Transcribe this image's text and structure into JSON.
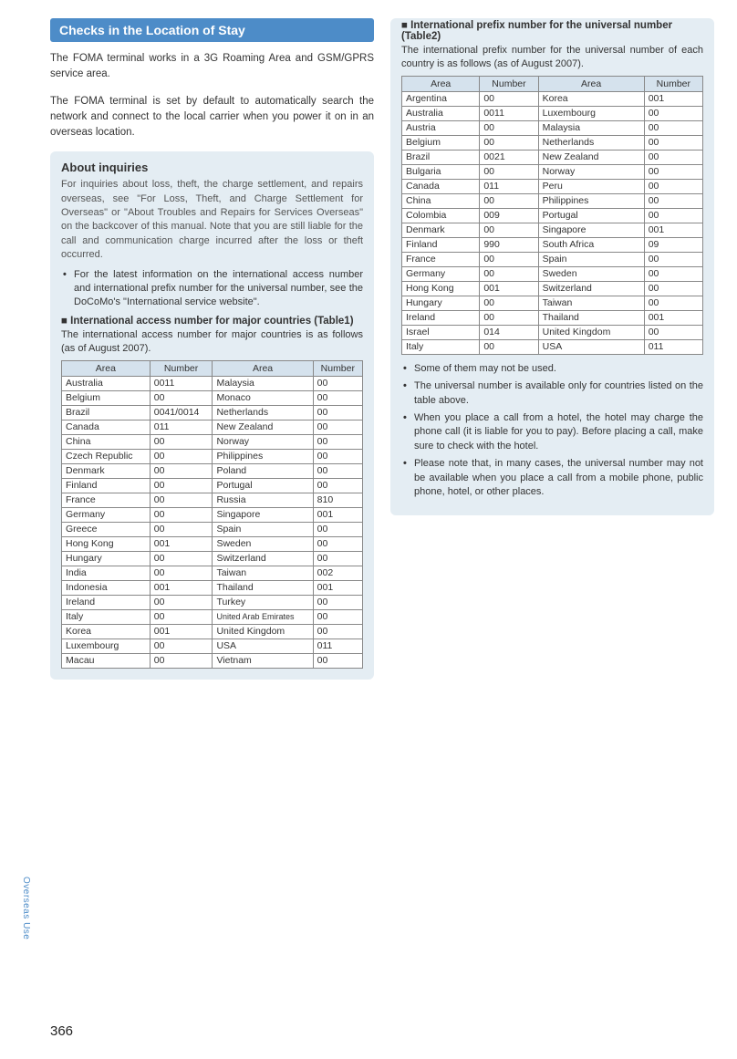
{
  "page_number": "366",
  "side_label": "Overseas Use",
  "left": {
    "heading": "Checks in the Location of Stay",
    "intro1": "The FOMA terminal works in a 3G Roaming Area and GSM/GPRS service area.",
    "intro2": "The FOMA terminal is set by default to automatically search the network and connect to the local carrier when you power it on in an overseas location.",
    "box": {
      "title": "About inquiries",
      "body": "For inquiries about loss, theft, the charge settlement, and repairs overseas, see \"For Loss, Theft, and Charge Settlement for Overseas\" or \"About Troubles and Repairs for Services Overseas\" on the backcover of this manual. Note that you are still liable for the call and communication charge incurred after the loss or theft occurred.",
      "bullet1": "For the latest information on the international access number and international prefix number for the universal number, see the DoCoMo's \"International service website\".",
      "sub_heading": "International access number for major countries (Table1)",
      "sub_text": "The international access number for major countries is as follows (as of August 2007).",
      "table": {
        "headers": [
          "Area",
          "Number",
          "Area",
          "Number"
        ],
        "rows": [
          [
            "Australia",
            "0011",
            "Malaysia",
            "00"
          ],
          [
            "Belgium",
            "00",
            "Monaco",
            "00"
          ],
          [
            "Brazil",
            "0041/0014",
            "Netherlands",
            "00"
          ],
          [
            "Canada",
            "011",
            "New Zealand",
            "00"
          ],
          [
            "China",
            "00",
            "Norway",
            "00"
          ],
          [
            "Czech Republic",
            "00",
            "Philippines",
            "00"
          ],
          [
            "Denmark",
            "00",
            "Poland",
            "00"
          ],
          [
            "Finland",
            "00",
            "Portugal",
            "00"
          ],
          [
            "France",
            "00",
            "Russia",
            "810"
          ],
          [
            "Germany",
            "00",
            "Singapore",
            "001"
          ],
          [
            "Greece",
            "00",
            "Spain",
            "00"
          ],
          [
            "Hong Kong",
            "001",
            "Sweden",
            "00"
          ],
          [
            "Hungary",
            "00",
            "Switzerland",
            "00"
          ],
          [
            "India",
            "00",
            "Taiwan",
            "002"
          ],
          [
            "Indonesia",
            "001",
            "Thailand",
            "001"
          ],
          [
            "Ireland",
            "00",
            "Turkey",
            "00"
          ],
          [
            "Italy",
            "00",
            "United Arab Emirates",
            "00"
          ],
          [
            "Korea",
            "001",
            "United Kingdom",
            "00"
          ],
          [
            "Luxembourg",
            "00",
            "USA",
            "011"
          ],
          [
            "Macau",
            "00",
            "Vietnam",
            "00"
          ]
        ]
      }
    }
  },
  "right": {
    "box": {
      "sub_heading": "International prefix number for the universal number (Table2)",
      "sub_text": "The international prefix number for the universal number of each country is as follows (as of August 2007).",
      "table": {
        "headers": [
          "Area",
          "Number",
          "Area",
          "Number"
        ],
        "rows": [
          [
            "Argentina",
            "00",
            "Korea",
            "001"
          ],
          [
            "Australia",
            "0011",
            "Luxembourg",
            "00"
          ],
          [
            "Austria",
            "00",
            "Malaysia",
            "00"
          ],
          [
            "Belgium",
            "00",
            "Netherlands",
            "00"
          ],
          [
            "Brazil",
            "0021",
            "New Zealand",
            "00"
          ],
          [
            "Bulgaria",
            "00",
            "Norway",
            "00"
          ],
          [
            "Canada",
            "011",
            "Peru",
            "00"
          ],
          [
            "China",
            "00",
            "Philippines",
            "00"
          ],
          [
            "Colombia",
            "009",
            "Portugal",
            "00"
          ],
          [
            "Denmark",
            "00",
            "Singapore",
            "001"
          ],
          [
            "Finland",
            "990",
            "South Africa",
            "09"
          ],
          [
            "France",
            "00",
            "Spain",
            "00"
          ],
          [
            "Germany",
            "00",
            "Sweden",
            "00"
          ],
          [
            "Hong Kong",
            "001",
            "Switzerland",
            "00"
          ],
          [
            "Hungary",
            "00",
            "Taiwan",
            "00"
          ],
          [
            "Ireland",
            "00",
            "Thailand",
            "001"
          ],
          [
            "Israel",
            "014",
            "United Kingdom",
            "00"
          ],
          [
            "Italy",
            "00",
            "USA",
            "011"
          ]
        ]
      },
      "bullets": [
        "Some of them may not be used.",
        "The universal number is available only for countries listed on the table above.",
        "When you place a call from a hotel, the hotel may charge the phone call (it is liable for you to pay). Before placing a call, make sure to check with the hotel.",
        "Please note that, in many cases, the universal number may not be available when you place a call from a mobile phone, public phone, hotel, or other places."
      ]
    }
  }
}
